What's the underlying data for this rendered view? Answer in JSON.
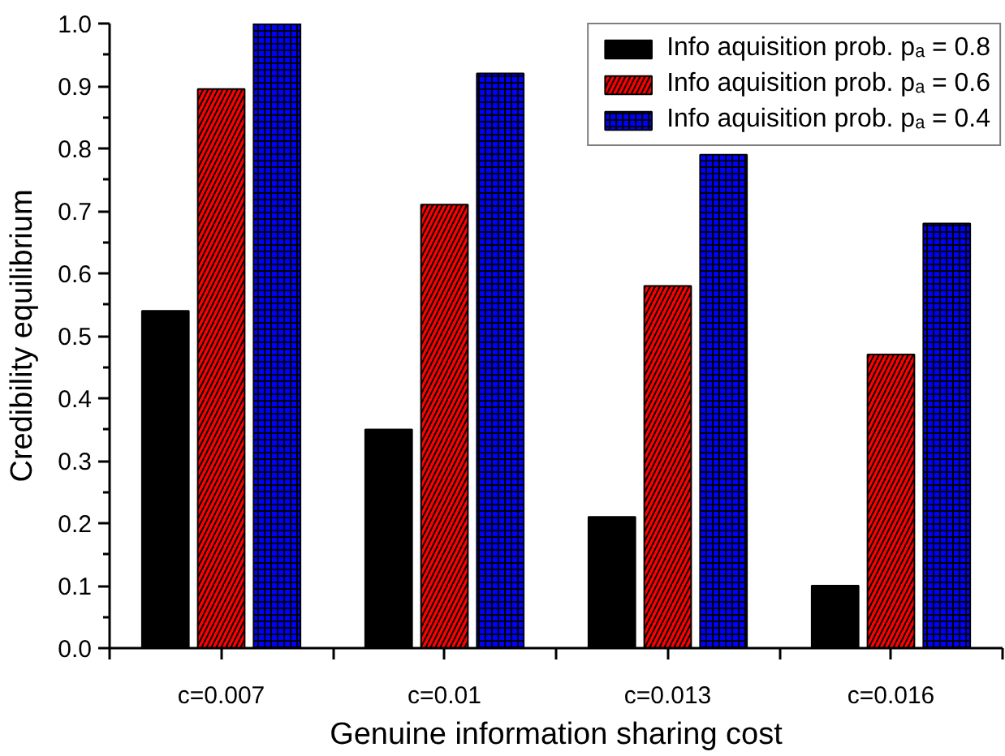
{
  "chart_data": {
    "type": "bar",
    "xlabel": "Genuine information sharing cost",
    "ylabel": "Credibility equilibrium",
    "categories": [
      "c=0.007",
      "c=0.01",
      "c=0.013",
      "c=0.016"
    ],
    "series": [
      {
        "name": "Info aquisition prob. pₐ = 0.8",
        "color": "#000000",
        "values": [
          0.54,
          0.35,
          0.21,
          0.1
        ]
      },
      {
        "name": "Info aquisition prob. pₐ = 0.6",
        "color": "#ff0000",
        "values": [
          0.895,
          0.71,
          0.58,
          0.47
        ]
      },
      {
        "name": "Info aquisition prob. pₐ = 0.4",
        "color": "#0000ff",
        "values": [
          1.0,
          0.92,
          0.79,
          0.68
        ]
      }
    ],
    "ylim": [
      0,
      1.0
    ],
    "yticks": [
      {
        "value": 0,
        "label": "0.0"
      },
      0.1,
      0.2,
      0.3,
      0.4,
      0.5,
      0.6,
      0.7,
      0.8,
      0.9,
      {
        "value": 1.0,
        "label": "1.0"
      }
    ],
    "legend": "top right",
    "grid": false
  }
}
